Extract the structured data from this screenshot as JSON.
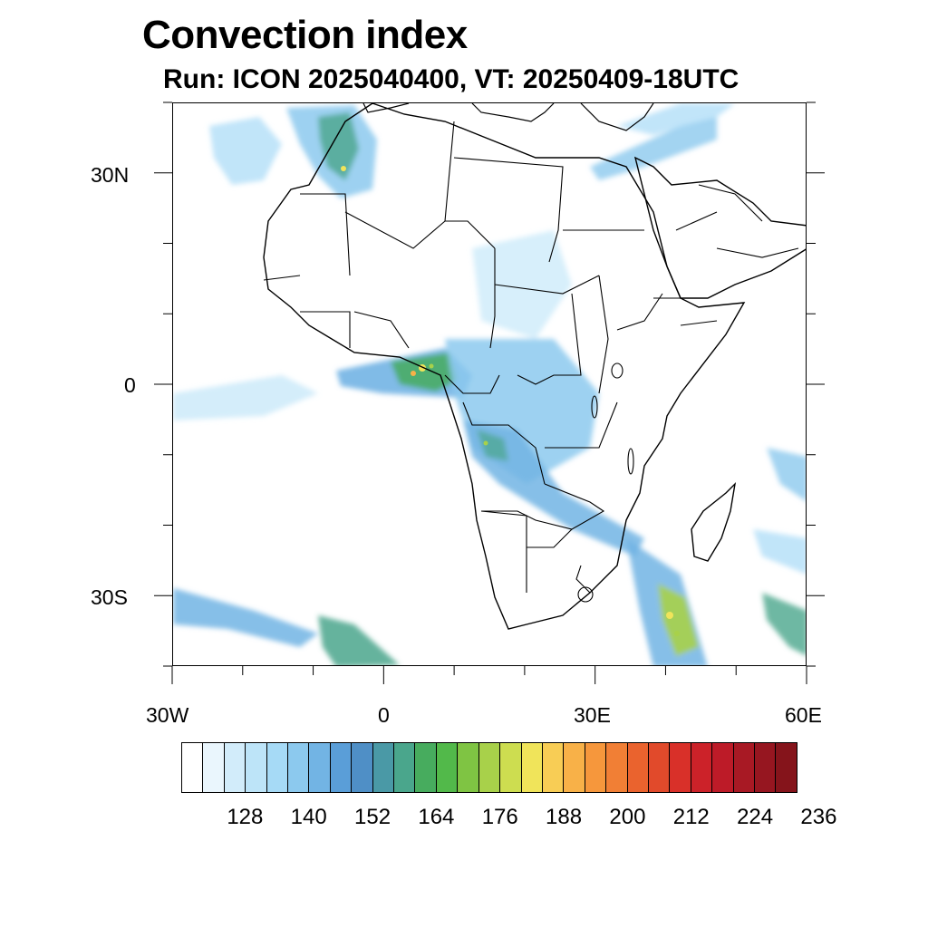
{
  "title": "Convection index",
  "subtitle": "Run: ICON 2025040400,  VT: 20250409-18UTC",
  "map": {
    "projection": "cylindrical equidistant",
    "lon_range": [
      -30,
      60
    ],
    "lat_range": [
      -40,
      40
    ],
    "lon_tick_labels": [
      "30W",
      "0",
      "30E",
      "60E"
    ],
    "lat_tick_labels": [
      "30N",
      "0",
      "30S"
    ],
    "coastline_color": "#000000"
  },
  "colorbar": {
    "labels": [
      "128",
      "140",
      "152",
      "164",
      "176",
      "188",
      "200",
      "212",
      "224",
      "236"
    ],
    "colors": [
      "#ffffff",
      "#eaf6fd",
      "#d2ecfa",
      "#bde4f8",
      "#a6daf6",
      "#8cc9ee",
      "#72b4e4",
      "#5a9ed8",
      "#4f8fc6",
      "#4a99a6",
      "#4aa68c",
      "#47ac5e",
      "#52b94a",
      "#7fc443",
      "#a8d14a",
      "#cddd50",
      "#f0e45a",
      "#f8cd55",
      "#f8b148",
      "#f6973c",
      "#f17f35",
      "#ea632e",
      "#e14a2b",
      "#d93029",
      "#cc2229",
      "#bd1b28",
      "#a81924",
      "#961620",
      "#85141b"
    ]
  }
}
